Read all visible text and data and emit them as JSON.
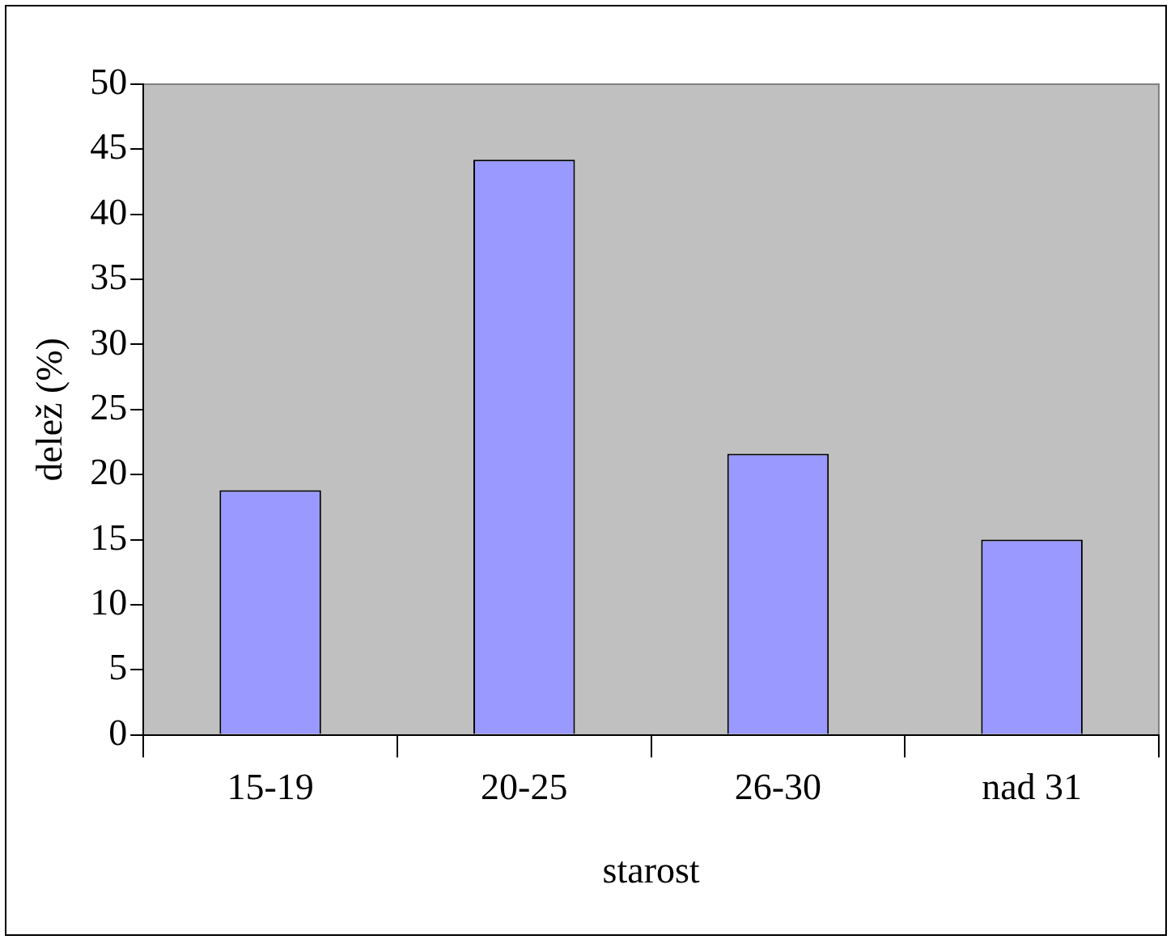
{
  "chart_data": {
    "type": "bar",
    "xlabel": "starost",
    "ylabel": "delež (%)",
    "categories": [
      "15-19",
      "20-25",
      "26-30",
      "nad 31"
    ],
    "values": [
      18.8,
      44.2,
      21.6,
      15.0
    ],
    "color": "#9999ff",
    "ylim": [
      0,
      50
    ],
    "yticks": [
      0,
      5,
      10,
      15,
      20,
      25,
      30,
      35,
      40,
      45,
      50
    ],
    "grid": false,
    "legend": false
  }
}
